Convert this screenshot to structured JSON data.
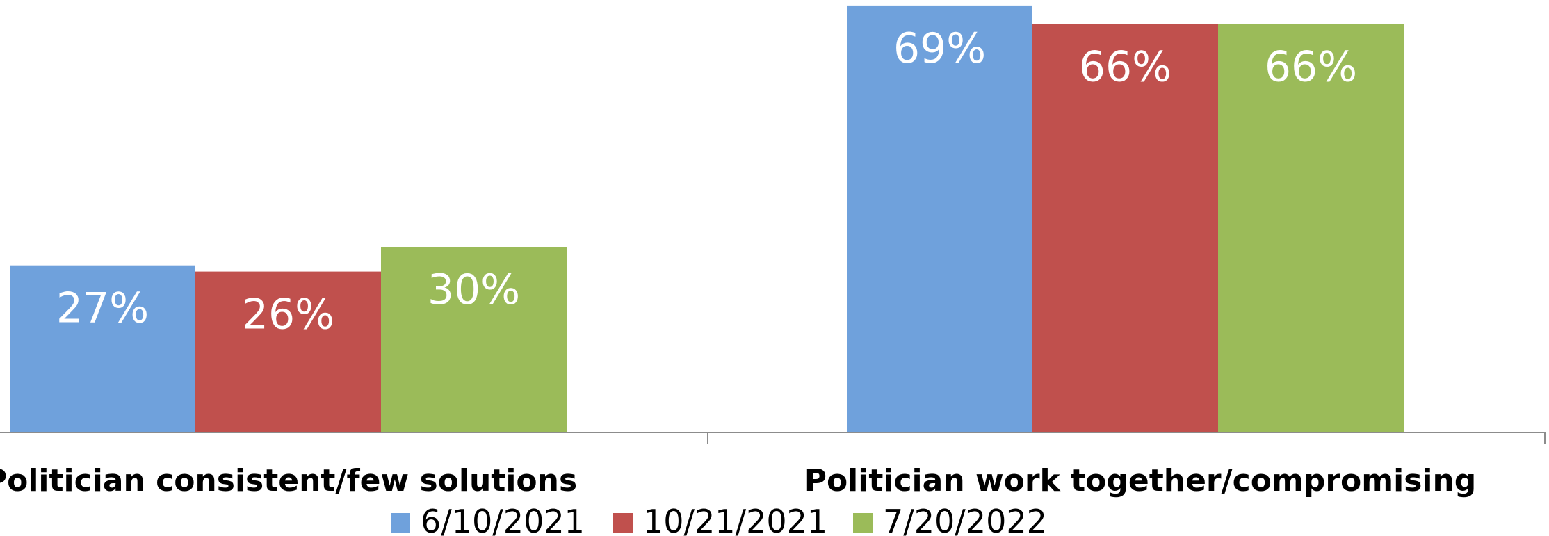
{
  "chart_data": {
    "type": "bar",
    "categories": [
      "Politician consistent/few solutions",
      "Politician work together/compromising"
    ],
    "series": [
      {
        "name": "6/10/2021",
        "color": "#6FA1DC",
        "values": [
          27,
          69
        ]
      },
      {
        "name": "10/21/2021",
        "color": "#C0504D",
        "values": [
          26,
          66
        ]
      },
      {
        "name": "7/20/2022",
        "color": "#9BBB59",
        "values": [
          30,
          66
        ]
      }
    ],
    "value_format": "percent",
    "data_labels": [
      [
        "27%",
        "69%"
      ],
      [
        "26%",
        "66%"
      ],
      [
        "30%",
        "66%"
      ]
    ],
    "ylim": [
      0,
      70
    ],
    "grid": false,
    "legend_position": "bottom"
  }
}
